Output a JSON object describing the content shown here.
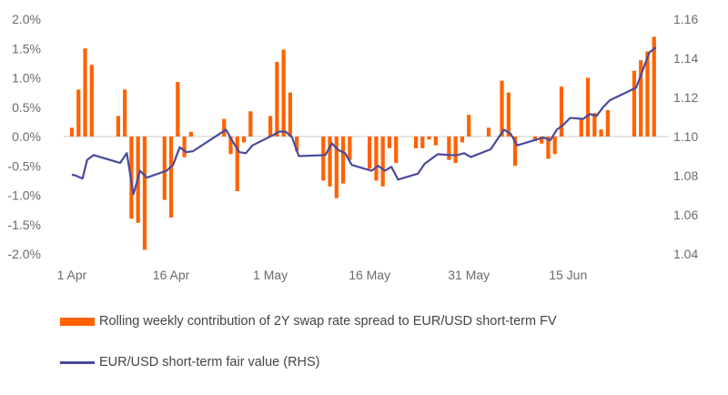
{
  "chart_data": {
    "type": "bar+line",
    "x_ticks": [
      {
        "label": "1 Apr",
        "day": 0
      },
      {
        "label": "16 Apr",
        "day": 15
      },
      {
        "label": "1 May",
        "day": 30
      },
      {
        "label": "16 May",
        "day": 45
      },
      {
        "label": "31 May",
        "day": 60
      },
      {
        "label": "15 Jun",
        "day": 75
      }
    ],
    "left_axis": {
      "min": -2.0,
      "max": 2.0,
      "ticks": [
        "2.0%",
        "1.5%",
        "1.0%",
        "0.5%",
        "0.0%",
        "-0.5%",
        "-1.0%",
        "-1.5%",
        "-2.0%"
      ]
    },
    "right_axis": {
      "min": 1.04,
      "max": 1.16,
      "ticks": [
        "1.16",
        "1.14",
        "1.12",
        "1.10",
        "1.08",
        "1.06",
        "1.04"
      ]
    },
    "series": [
      {
        "name": "Rolling weekly contribution of 2Y swap rate spread to EUR/USD short-term FV",
        "type": "bar",
        "axis": "left",
        "color": "#ff6200",
        "points": [
          {
            "day": 0,
            "value": 0.15
          },
          {
            "day": 1,
            "value": 0.8
          },
          {
            "day": 2,
            "value": 1.5
          },
          {
            "day": 3,
            "value": 1.22
          },
          {
            "day": 7,
            "value": 0.35
          },
          {
            "day": 8,
            "value": 0.8
          },
          {
            "day": 9,
            "value": -1.4
          },
          {
            "day": 10,
            "value": -1.47
          },
          {
            "day": 11,
            "value": -1.93
          },
          {
            "day": 14,
            "value": -1.08
          },
          {
            "day": 15,
            "value": -1.38
          },
          {
            "day": 16,
            "value": 0.93
          },
          {
            "day": 17,
            "value": -0.35
          },
          {
            "day": 18,
            "value": 0.08
          },
          {
            "day": 23,
            "value": 0.3
          },
          {
            "day": 24,
            "value": -0.3
          },
          {
            "day": 25,
            "value": -0.93
          },
          {
            "day": 26,
            "value": -0.1
          },
          {
            "day": 27,
            "value": 0.43
          },
          {
            "day": 30,
            "value": 0.35
          },
          {
            "day": 31,
            "value": 1.27
          },
          {
            "day": 32,
            "value": 1.48
          },
          {
            "day": 33,
            "value": 0.75
          },
          {
            "day": 34,
            "value": -0.25
          },
          {
            "day": 38,
            "value": -0.75
          },
          {
            "day": 39,
            "value": -0.85
          },
          {
            "day": 40,
            "value": -1.05
          },
          {
            "day": 41,
            "value": -0.8
          },
          {
            "day": 42,
            "value": -0.4
          },
          {
            "day": 45,
            "value": -0.55
          },
          {
            "day": 46,
            "value": -0.75
          },
          {
            "day": 47,
            "value": -0.85
          },
          {
            "day": 48,
            "value": -0.2
          },
          {
            "day": 49,
            "value": -0.45
          },
          {
            "day": 52,
            "value": -0.2
          },
          {
            "day": 53,
            "value": -0.2
          },
          {
            "day": 54,
            "value": -0.05
          },
          {
            "day": 55,
            "value": -0.15
          },
          {
            "day": 57,
            "value": -0.4
          },
          {
            "day": 58,
            "value": -0.45
          },
          {
            "day": 59,
            "value": -0.1
          },
          {
            "day": 60,
            "value": 0.37
          },
          {
            "day": 63,
            "value": 0.15
          },
          {
            "day": 65,
            "value": 0.95
          },
          {
            "day": 66,
            "value": 0.75
          },
          {
            "day": 67,
            "value": -0.5
          },
          {
            "day": 70,
            "value": -0.08
          },
          {
            "day": 71,
            "value": -0.12
          },
          {
            "day": 72,
            "value": -0.38
          },
          {
            "day": 73,
            "value": -0.3
          },
          {
            "day": 74,
            "value": 0.85
          },
          {
            "day": 77,
            "value": 0.3
          },
          {
            "day": 78,
            "value": 1.0
          },
          {
            "day": 79,
            "value": 0.4
          },
          {
            "day": 80,
            "value": 0.12
          },
          {
            "day": 81,
            "value": 0.45
          },
          {
            "day": 85,
            "value": 1.12
          },
          {
            "day": 86,
            "value": 1.3
          },
          {
            "day": 87,
            "value": 1.45
          },
          {
            "day": 88,
            "value": 1.7
          }
        ]
      },
      {
        "name": "EUR/USD short-term fair value (RHS)",
        "type": "line",
        "axis": "right",
        "color": "#4a4a9c",
        "points": [
          {
            "day": 0,
            "value": 1.0805
          },
          {
            "day": 0.6,
            "value": 1.08
          },
          {
            "day": 1.6,
            "value": 1.0785
          },
          {
            "day": 2.3,
            "value": 1.088
          },
          {
            "day": 3.3,
            "value": 1.0905
          },
          {
            "day": 7.3,
            "value": 1.0865
          },
          {
            "day": 8.3,
            "value": 1.0915
          },
          {
            "day": 9.3,
            "value": 1.0705
          },
          {
            "day": 10.3,
            "value": 1.0825
          },
          {
            "day": 11.3,
            "value": 1.079
          },
          {
            "day": 14.3,
            "value": 1.0825
          },
          {
            "day": 15.3,
            "value": 1.0855
          },
          {
            "day": 16.3,
            "value": 1.0945
          },
          {
            "day": 17.3,
            "value": 1.092
          },
          {
            "day": 18.3,
            "value": 1.0925
          },
          {
            "day": 23.3,
            "value": 1.1035
          },
          {
            "day": 24.3,
            "value": 1.0975
          },
          {
            "day": 25.3,
            "value": 1.092
          },
          {
            "day": 26.3,
            "value": 1.0915
          },
          {
            "day": 27.3,
            "value": 1.0955
          },
          {
            "day": 30.3,
            "value": 1.1005
          },
          {
            "day": 31.3,
            "value": 1.1025
          },
          {
            "day": 32.3,
            "value": 1.1025
          },
          {
            "day": 33.3,
            "value": 1.0995
          },
          {
            "day": 34.3,
            "value": 1.09
          },
          {
            "day": 38.3,
            "value": 1.0905
          },
          {
            "day": 39.3,
            "value": 1.0965
          },
          {
            "day": 40.3,
            "value": 1.093
          },
          {
            "day": 41.3,
            "value": 1.0915
          },
          {
            "day": 42.3,
            "value": 1.0855
          },
          {
            "day": 45.3,
            "value": 1.0825
          },
          {
            "day": 46.3,
            "value": 1.085
          },
          {
            "day": 47.3,
            "value": 1.0825
          },
          {
            "day": 48.3,
            "value": 1.0845
          },
          {
            "day": 49.3,
            "value": 1.078
          },
          {
            "day": 52.3,
            "value": 1.081
          },
          {
            "day": 53.3,
            "value": 1.086
          },
          {
            "day": 54.3,
            "value": 1.0885
          },
          {
            "day": 55.3,
            "value": 1.091
          },
          {
            "day": 57.3,
            "value": 1.0905
          },
          {
            "day": 58.3,
            "value": 1.0905
          },
          {
            "day": 59.3,
            "value": 1.0915
          },
          {
            "day": 60.3,
            "value": 1.0895
          },
          {
            "day": 63.3,
            "value": 1.0935
          },
          {
            "day": 65.3,
            "value": 1.1035
          },
          {
            "day": 66.3,
            "value": 1.1015
          },
          {
            "day": 67.3,
            "value": 1.0955
          },
          {
            "day": 70.3,
            "value": 1.0985
          },
          {
            "day": 71.3,
            "value": 1.0995
          },
          {
            "day": 72.3,
            "value": 1.098
          },
          {
            "day": 73.3,
            "value": 1.1035
          },
          {
            "day": 74.3,
            "value": 1.106
          },
          {
            "day": 75.3,
            "value": 1.1095
          },
          {
            "day": 77.3,
            "value": 1.109
          },
          {
            "day": 78.3,
            "value": 1.1115
          },
          {
            "day": 79.3,
            "value": 1.1105
          },
          {
            "day": 80.3,
            "value": 1.115
          },
          {
            "day": 81.3,
            "value": 1.1185
          },
          {
            "day": 85.3,
            "value": 1.125
          },
          {
            "day": 86.3,
            "value": 1.134
          },
          {
            "day": 87.3,
            "value": 1.143
          },
          {
            "day": 88.3,
            "value": 1.1455
          }
        ]
      }
    ],
    "legend_placement": "bottom"
  }
}
